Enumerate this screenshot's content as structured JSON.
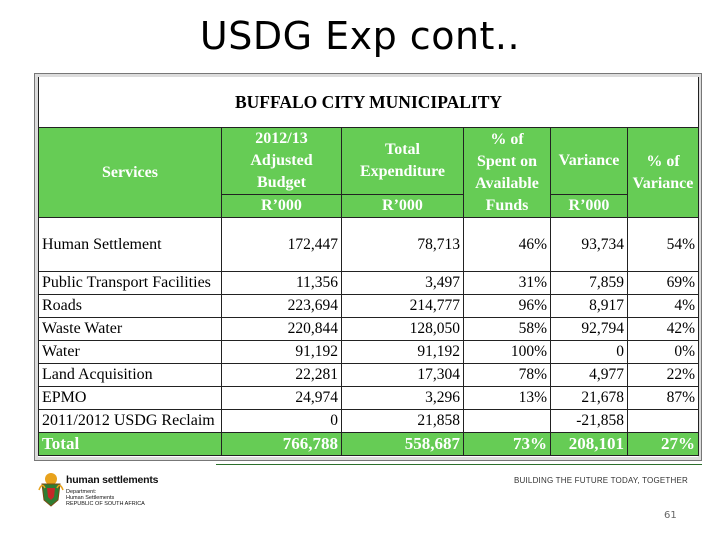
{
  "slide": {
    "title": "USDG Exp cont..",
    "page_number": "61"
  },
  "table": {
    "title": "BUFFALO CITY MUNICIPALITY",
    "headers": {
      "services": "Services",
      "budget_lines": [
        "2012/13",
        "Adjusted",
        "Budget"
      ],
      "budget_unit": "R’000",
      "expenditure_lines": [
        "Total",
        "Expenditure"
      ],
      "expenditure_unit": "R’000",
      "pct_spent_lines": [
        "% of",
        "Spent on",
        "Available",
        "Funds"
      ],
      "variance": "Variance",
      "variance_unit": "R’000",
      "pct_variance_lines": [
        "% of",
        "Variance"
      ]
    },
    "rows": [
      {
        "service": "Human Settlement",
        "budget": "172,447",
        "expenditure": "78,713",
        "pct_spent": "46%",
        "variance": "93,734",
        "pct_variance": "54%"
      },
      {
        "service": "Public Transport Facilities",
        "budget": "11,356",
        "expenditure": "3,497",
        "pct_spent": "31%",
        "variance": "7,859",
        "pct_variance": "69%"
      },
      {
        "service": "Roads",
        "budget": "223,694",
        "expenditure": "214,777",
        "pct_spent": "96%",
        "variance": "8,917",
        "pct_variance": "4%"
      },
      {
        "service": "Waste Water",
        "budget": "220,844",
        "expenditure": "128,050",
        "pct_spent": "58%",
        "variance": "92,794",
        "pct_variance": "42%"
      },
      {
        "service": "Water",
        "budget": "91,192",
        "expenditure": "91,192",
        "pct_spent": "100%",
        "variance": "0",
        "pct_variance": "0%"
      },
      {
        "service": "Land Acquisition",
        "budget": "22,281",
        "expenditure": "17,304",
        "pct_spent": "78%",
        "variance": "4,977",
        "pct_variance": "22%"
      },
      {
        "service": "EPMO",
        "budget": "24,974",
        "expenditure": "3,296",
        "pct_spent": "13%",
        "variance": "21,678",
        "pct_variance": "87%"
      },
      {
        "service": "2011/2012 USDG Reclaim",
        "budget": "0",
        "expenditure": "21,858",
        "pct_spent": "",
        "variance": "-21,858",
        "pct_variance": ""
      }
    ],
    "total": {
      "service": "Total",
      "budget": "766,788",
      "expenditure": "558,687",
      "pct_spent": "73%",
      "variance": "208,101",
      "pct_variance": "27%"
    }
  },
  "footer": {
    "logo_name": "human settlements",
    "logo_sub": [
      "Department:",
      "Human Settlements",
      "REPUBLIC OF SOUTH AFRICA"
    ],
    "tagline": "BUILDING THE FUTURE TODAY, TOGETHER"
  },
  "colors": {
    "header_green": "#66cc55",
    "rule_green": "#2b6f2b"
  }
}
